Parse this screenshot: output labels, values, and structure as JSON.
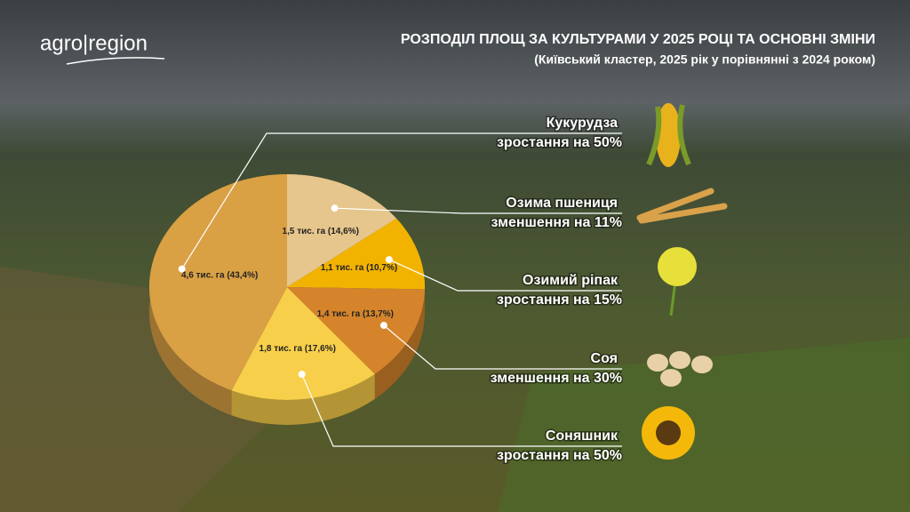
{
  "logo": "agro|region",
  "chart_data": {
    "type": "pie",
    "title": "РОЗПОДІЛ ПЛОЩ ЗА КУЛЬТУРАМИ У 2025 РОЦІ ТА ОСНОВНІ ЗМІНИ",
    "subtitle": "(Київський кластер, 2025 рік у порівнянні з 2024 роком)",
    "categories": [
      "Озима пшениця",
      "Озимий ріпак",
      "Соя",
      "Соняшник",
      "Кукурудза"
    ],
    "changes": [
      "зменшення на 11%",
      "зростання на 15%",
      "зменшення на 30%",
      "зростання на 50%",
      "зростання на 50%"
    ],
    "values": [
      14.6,
      10.7,
      13.7,
      17.6,
      43.4
    ],
    "value_labels": [
      "1,5 тис. га (14,6%)",
      "1,1 тис. га (10,7%)",
      "1,4 тис. га (13,7%)",
      "1,8 тис. га (17,6%)",
      "4,6 тис. га (43,4%)"
    ],
    "colors": [
      "#e6c68c",
      "#f2b300",
      "#d5842b",
      "#f8cf4a",
      "#d9a044"
    ]
  }
}
